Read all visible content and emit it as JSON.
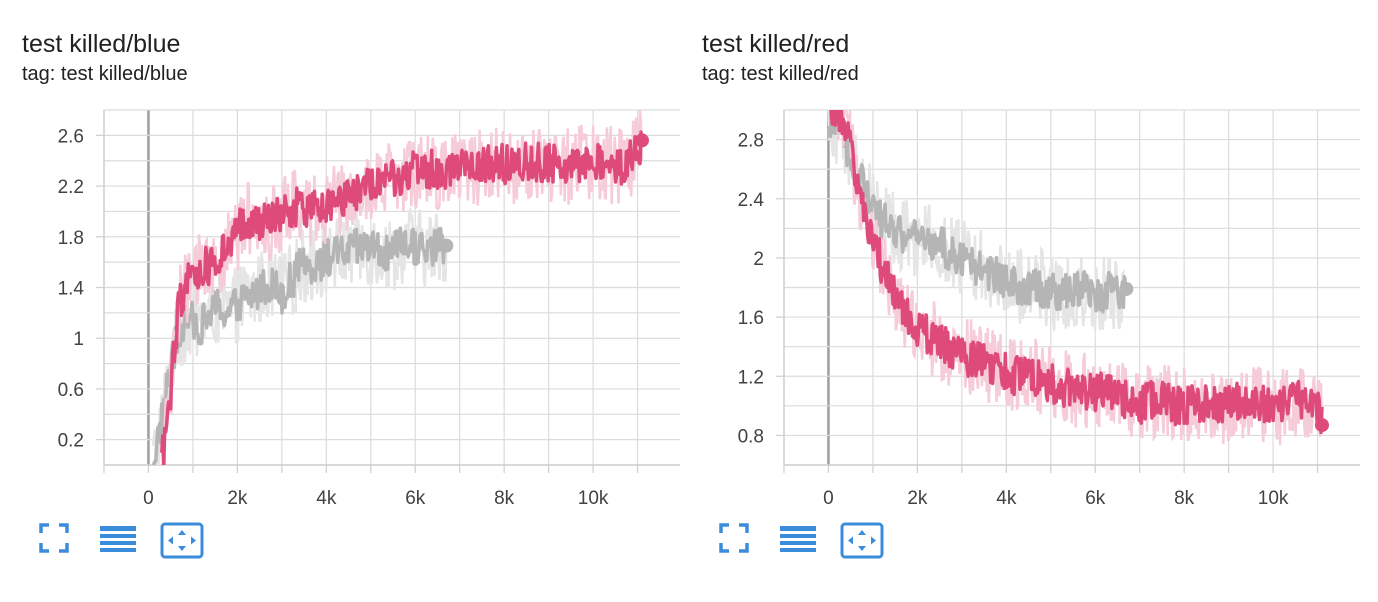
{
  "colors": {
    "pink": "#de4a7a",
    "pink_faint": "#f6ccd9",
    "gray": "#b5b5b5",
    "gray_faint": "#e5e5e5",
    "icon": "#3b8ddb"
  },
  "toolbar_icons": [
    "fullscreen-icon",
    "data-table-icon",
    "fit-domain-icon"
  ],
  "chart_data": [
    {
      "type": "line",
      "title": "test killed/blue",
      "subtitle": "tag: test killed/blue",
      "xlim": [
        -1000,
        12000
      ],
      "ylim": [
        0,
        2.8
      ],
      "x_ticks": [
        0,
        2000,
        4000,
        6000,
        8000,
        10000
      ],
      "x_tick_labels": [
        "0",
        "2k",
        "4k",
        "6k",
        "8k",
        "10k"
      ],
      "y_ticks": [
        0.2,
        0.6,
        1,
        1.4,
        1.8,
        2.2,
        2.6
      ],
      "y_tick_labels": [
        "0.2",
        "0.6",
        "1",
        "1.4",
        "1.8",
        "2.2",
        "2.6"
      ],
      "grid": true,
      "series": [
        {
          "color": "#b5b5b5",
          "x": [
            100,
            300,
            500,
            700,
            900,
            1200,
            1500,
            1800,
            2100,
            2400,
            2700,
            3000,
            3400,
            3800,
            4200,
            4600,
            5000,
            5400,
            5800,
            6200,
            6700
          ],
          "y": [
            0.02,
            0.35,
            0.8,
            1.05,
            1.15,
            1.1,
            1.25,
            1.2,
            1.3,
            1.35,
            1.45,
            1.35,
            1.55,
            1.6,
            1.65,
            1.7,
            1.72,
            1.65,
            1.75,
            1.7,
            1.73
          ]
        },
        {
          "color": "#de4a7a",
          "x": [
            300,
            500,
            700,
            900,
            1200,
            1500,
            1800,
            2100,
            2400,
            2700,
            3000,
            3400,
            3800,
            4200,
            4600,
            5000,
            5400,
            5800,
            6200,
            6600,
            7000,
            7400,
            7800,
            8200,
            8600,
            9000,
            9400,
            9800,
            10200,
            10600,
            11000,
            11100
          ],
          "y": [
            0.02,
            0.6,
            1.3,
            1.45,
            1.55,
            1.6,
            1.7,
            1.9,
            1.95,
            1.9,
            2.0,
            2.05,
            2.0,
            2.1,
            2.15,
            2.2,
            2.25,
            2.3,
            2.35,
            2.3,
            2.4,
            2.35,
            2.4,
            2.35,
            2.4,
            2.38,
            2.35,
            2.4,
            2.38,
            2.35,
            2.45,
            2.56
          ]
        }
      ]
    },
    {
      "type": "line",
      "title": "test killed/red",
      "subtitle": "tag: test killed/red",
      "xlim": [
        -1000,
        12000
      ],
      "ylim": [
        0.6,
        3.0
      ],
      "x_ticks": [
        0,
        2000,
        4000,
        6000,
        8000,
        10000
      ],
      "x_tick_labels": [
        "0",
        "2k",
        "4k",
        "6k",
        "8k",
        "10k"
      ],
      "y_ticks": [
        0.8,
        1.2,
        1.6,
        2,
        2.4,
        2.8
      ],
      "y_tick_labels": [
        "0.8",
        "1.2",
        "1.6",
        "2",
        "2.4",
        "2.8"
      ],
      "grid": true,
      "series": [
        {
          "color": "#b5b5b5",
          "x": [
            0,
            300,
            600,
            900,
            1200,
            1500,
            1800,
            2100,
            2400,
            2700,
            3000,
            3300,
            3600,
            4000,
            4400,
            4800,
            5200,
            5600,
            6000,
            6400,
            6700
          ],
          "y": [
            2.95,
            2.85,
            2.6,
            2.4,
            2.25,
            2.2,
            2.15,
            2.1,
            2.1,
            2.05,
            2.0,
            1.95,
            1.9,
            1.85,
            1.8,
            1.8,
            1.75,
            1.8,
            1.75,
            1.78,
            1.79
          ]
        },
        {
          "color": "#de4a7a",
          "x": [
            0,
            300,
            600,
            900,
            1200,
            1500,
            1800,
            2100,
            2400,
            2700,
            3000,
            3400,
            3800,
            4200,
            4600,
            5000,
            5400,
            5800,
            6200,
            6600,
            7000,
            7400,
            7800,
            8200,
            8600,
            9000,
            9400,
            9800,
            10200,
            10600,
            11000,
            11100
          ],
          "y": [
            3.0,
            2.95,
            2.6,
            2.2,
            1.95,
            1.75,
            1.6,
            1.5,
            1.45,
            1.4,
            1.35,
            1.3,
            1.25,
            1.2,
            1.2,
            1.15,
            1.12,
            1.1,
            1.1,
            1.05,
            1.0,
            1.05,
            1.0,
            1.02,
            1.0,
            1.0,
            1.05,
            1.0,
            1.0,
            1.05,
            1.0,
            0.87
          ]
        }
      ]
    }
  ]
}
